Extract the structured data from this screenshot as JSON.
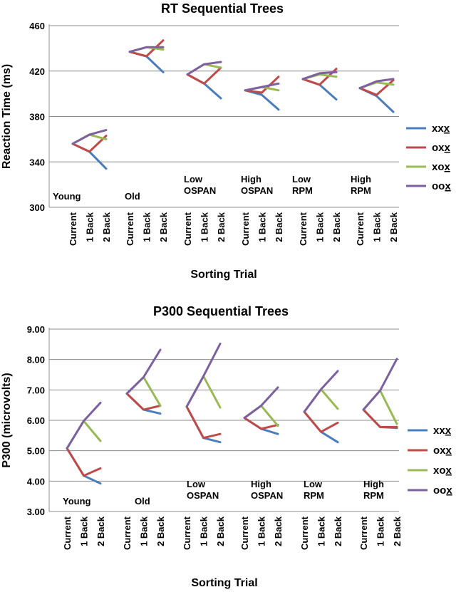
{
  "chart_data": [
    {
      "type": "line",
      "title": "RT Sequential Trees",
      "xlabel": "Sorting Trial",
      "ylabel": "Reaction Time (ms)",
      "ylim": [
        300,
        460
      ],
      "yticks": [
        "300",
        "340",
        "380",
        "420",
        "460"
      ],
      "categories": [
        "Current",
        "1 Back",
        "2 Back"
      ],
      "groups": [
        {
          "label": [
            "Young"
          ]
        },
        {
          "label": [
            "Old"
          ]
        },
        {
          "label": [
            "Low",
            "OSPAN"
          ]
        },
        {
          "label": [
            "High",
            "OSPAN"
          ]
        },
        {
          "label": [
            "Low",
            "RPM"
          ]
        },
        {
          "label": [
            "High",
            "RPM"
          ]
        }
      ],
      "series": [
        {
          "name": "xxx",
          "legend": "xx",
          "legend_u": "x",
          "color": "#4a7ebb",
          "values": [
            [
              356,
              349,
              334
            ],
            [
              437,
              433,
              419
            ],
            [
              417,
              409,
              396
            ],
            [
              403,
              399,
              386
            ],
            [
              413,
              408,
              395
            ],
            [
              405,
              398,
              384
            ]
          ]
        },
        {
          "name": "oxx",
          "legend": "ox",
          "legend_u": "x",
          "color": "#be4b48",
          "values": [
            [
              356,
              349,
              363
            ],
            [
              437,
              433,
              447
            ],
            [
              417,
              409,
              423
            ],
            [
              403,
              401,
              415
            ],
            [
              413,
              408,
              422
            ],
            [
              405,
              399,
              412
            ]
          ]
        },
        {
          "name": "xox",
          "legend": "xo",
          "legend_u": "x",
          "color": "#98b954",
          "values": [
            [
              356,
              364,
              360
            ],
            [
              437,
              441,
              439
            ],
            [
              417,
              426,
              423
            ],
            [
              403,
              406,
              403
            ],
            [
              413,
              417,
              415
            ],
            [
              405,
              410,
              408
            ]
          ]
        },
        {
          "name": "oox",
          "legend": "oo",
          "legend_u": "x",
          "color": "#7d60a0",
          "values": [
            [
              356,
              364,
              368
            ],
            [
              437,
              441,
              441
            ],
            [
              417,
              426,
              428
            ],
            [
              403,
              406,
              409
            ],
            [
              413,
              418,
              419
            ],
            [
              405,
              411,
              413
            ]
          ]
        }
      ]
    },
    {
      "type": "line",
      "title": "P300 Sequential Trees",
      "xlabel": "Sorting Trial",
      "ylabel": "P300 (microvolts)",
      "ylim": [
        3.0,
        9.0
      ],
      "yticks": [
        "3.00",
        "4.00",
        "5.00",
        "6.00",
        "7.00",
        "8.00",
        "9.00"
      ],
      "categories": [
        "Current",
        "1 Back",
        "2 Back"
      ],
      "groups": [
        {
          "label": [
            "Young"
          ]
        },
        {
          "label": [
            "Old"
          ]
        },
        {
          "label": [
            "Low",
            "OSPAN"
          ]
        },
        {
          "label": [
            "High",
            "OSPAN"
          ]
        },
        {
          "label": [
            "Low",
            "RPM"
          ]
        },
        {
          "label": [
            "High",
            "RPM"
          ]
        }
      ],
      "series": [
        {
          "name": "xxx",
          "legend": "xx",
          "legend_u": "x",
          "color": "#4a7ebb",
          "values": [
            [
              5.08,
              4.18,
              3.92
            ],
            [
              6.88,
              6.35,
              6.22
            ],
            [
              6.45,
              5.42,
              5.28
            ],
            [
              6.08,
              5.72,
              5.55
            ],
            [
              6.28,
              5.62,
              5.28
            ],
            [
              6.35,
              5.78,
              5.75
            ]
          ]
        },
        {
          "name": "oxx",
          "legend": "ox",
          "legend_u": "x",
          "color": "#be4b48",
          "values": [
            [
              5.08,
              4.18,
              4.42
            ],
            [
              6.88,
              6.35,
              6.48
            ],
            [
              6.45,
              5.42,
              5.55
            ],
            [
              6.08,
              5.72,
              5.85
            ],
            [
              6.28,
              5.62,
              5.92
            ],
            [
              6.35,
              5.78,
              5.78
            ]
          ]
        },
        {
          "name": "xox",
          "legend": "xo",
          "legend_u": "x",
          "color": "#98b954",
          "values": [
            [
              5.08,
              5.98,
              5.32
            ],
            [
              6.88,
              7.42,
              6.48
            ],
            [
              6.45,
              7.45,
              6.42
            ],
            [
              6.08,
              6.48,
              5.82
            ],
            [
              6.28,
              7.02,
              6.38
            ],
            [
              6.35,
              6.98,
              5.88
            ]
          ]
        },
        {
          "name": "oox",
          "legend": "oo",
          "legend_u": "x",
          "color": "#7d60a0",
          "values": [
            [
              5.08,
              5.98,
              6.58
            ],
            [
              6.88,
              7.42,
              8.32
            ],
            [
              6.45,
              7.45,
              8.52
            ],
            [
              6.08,
              6.48,
              7.08
            ],
            [
              6.28,
              7.02,
              7.62
            ],
            [
              6.35,
              6.98,
              8.02
            ]
          ]
        }
      ]
    }
  ]
}
